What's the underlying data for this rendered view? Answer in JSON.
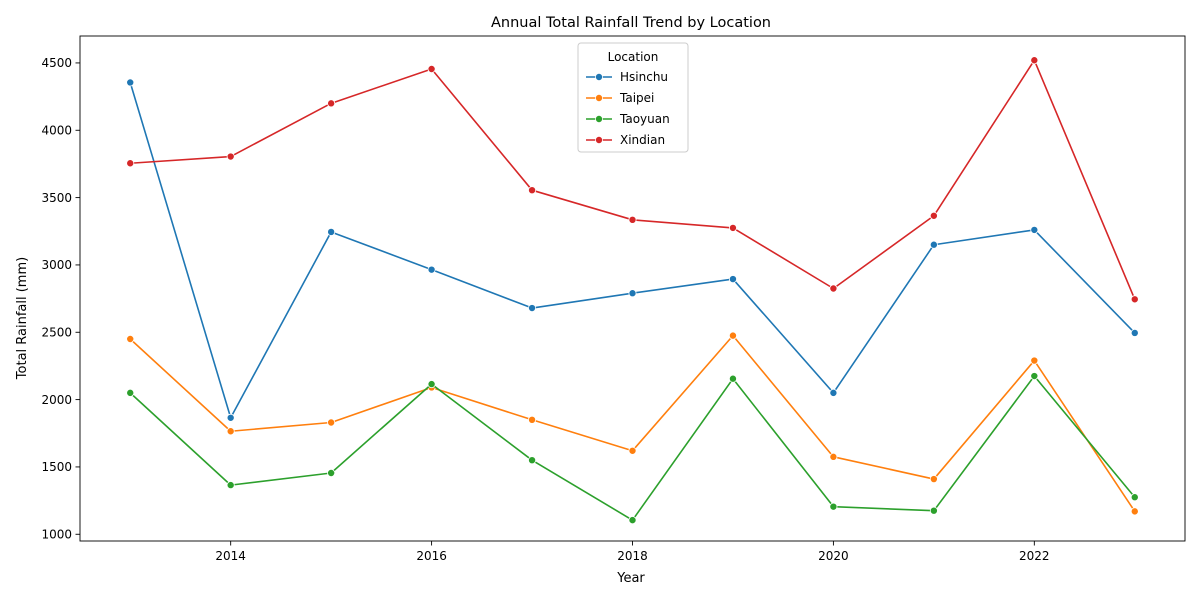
{
  "chart_data": {
    "type": "line",
    "title": "Annual Total Rainfall Trend by Location",
    "xlabel": "Year",
    "ylabel": "Total Rainfall (mm)",
    "x": [
      2013,
      2014,
      2015,
      2016,
      2017,
      2018,
      2019,
      2020,
      2021,
      2022,
      2023
    ],
    "xlim": [
      2012.5,
      2023.5
    ],
    "ylim": [
      950,
      4700
    ],
    "xticks": [
      2014,
      2016,
      2018,
      2020,
      2022
    ],
    "yticks": [
      1000,
      1500,
      2000,
      2500,
      3000,
      3500,
      4000,
      4500
    ],
    "grid": false,
    "legend": {
      "title": "Location",
      "placement": "top-center"
    },
    "series": [
      {
        "name": "Hsinchu",
        "color": "#1f77b4",
        "values": [
          4355,
          1865,
          3245,
          2965,
          2680,
          2790,
          2895,
          2050,
          3150,
          3260,
          2495
        ]
      },
      {
        "name": "Taipei",
        "color": "#ff7f0e",
        "values": [
          2450,
          1765,
          1830,
          2090,
          1850,
          1620,
          2475,
          1575,
          1410,
          2290,
          1170
        ]
      },
      {
        "name": "Taoyuan",
        "color": "#2ca02c",
        "values": [
          2050,
          1365,
          1455,
          2115,
          1550,
          1105,
          2155,
          1205,
          1175,
          2175,
          1275
        ]
      },
      {
        "name": "Xindian",
        "color": "#d62728",
        "values": [
          3755,
          3805,
          4200,
          4455,
          3555,
          3335,
          3275,
          2825,
          3365,
          4520,
          2745
        ]
      }
    ]
  }
}
